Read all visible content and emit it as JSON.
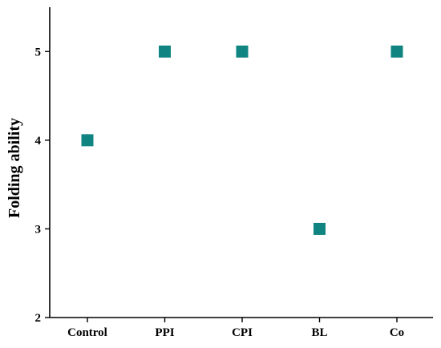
{
  "chart_data": {
    "type": "scatter",
    "title": "",
    "xlabel": "",
    "ylabel": "Folding ability",
    "categories": [
      "Control",
      "PPI",
      "CPI",
      "BL",
      "Co"
    ],
    "values": [
      4,
      5,
      5,
      3,
      5
    ],
    "ylim": [
      2,
      5.5
    ],
    "y_ticks": [
      2,
      3,
      4,
      5
    ],
    "grid": false,
    "legend": "none",
    "marker": "square",
    "marker_color": "#0f8480"
  }
}
